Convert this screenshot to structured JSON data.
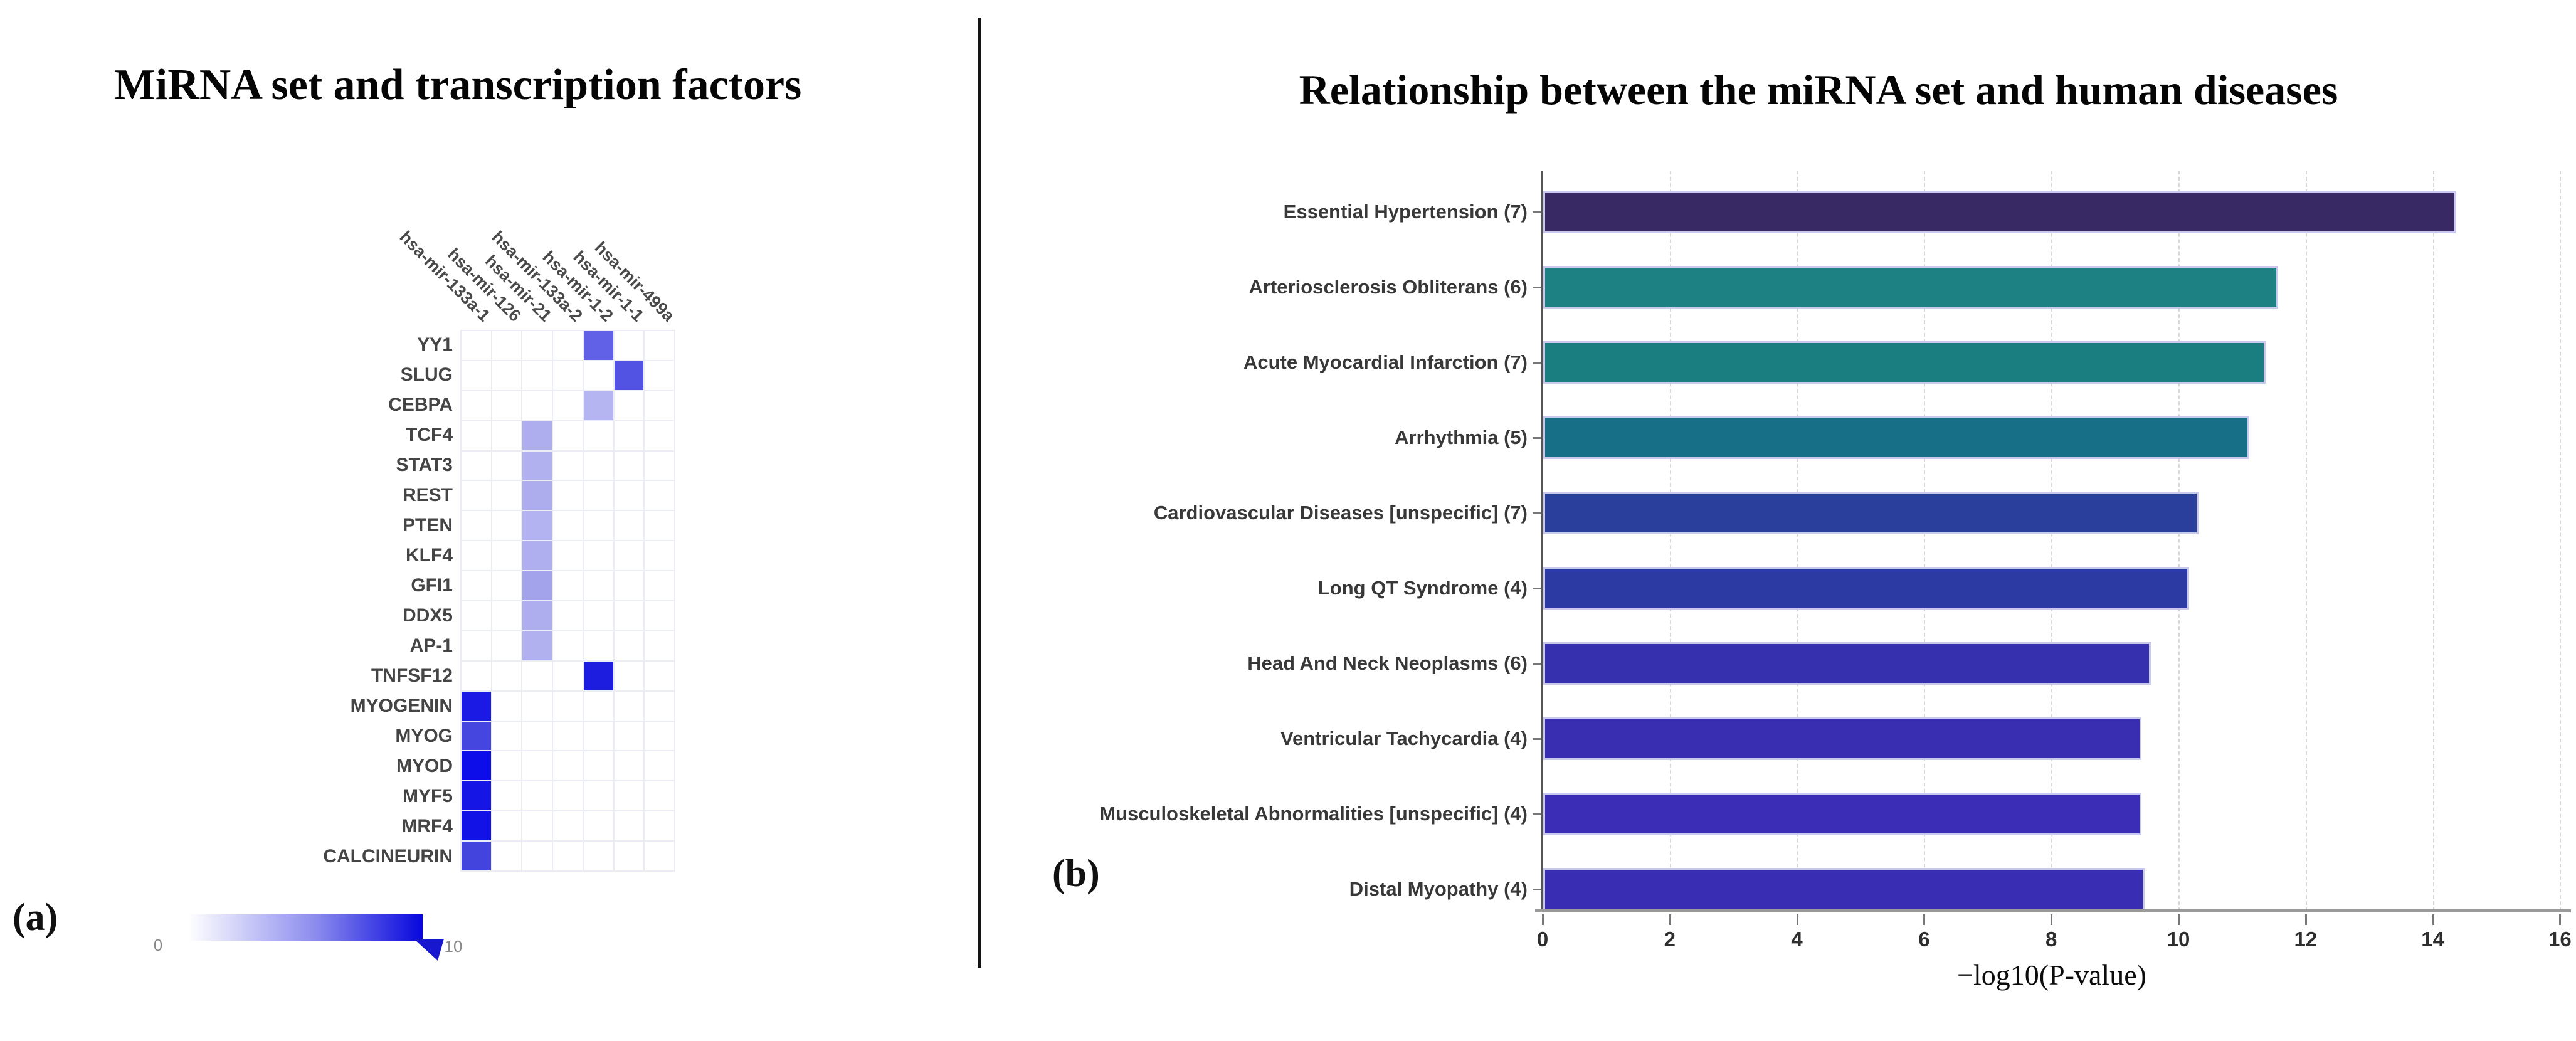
{
  "panel_a": {
    "label": "(a)",
    "title": "MiRNA set and transcription factors",
    "colorbar": {
      "min_label": "0",
      "max_label": "10"
    }
  },
  "panel_b": {
    "label": "(b)",
    "title": "Relationship between the miRNA set and human diseases",
    "xlabel": "−log10(P-value)"
  },
  "chart_data": [
    {
      "type": "heatmap",
      "title": "MiRNA set and transcription factors",
      "columns": [
        "hsa-mir-133a-1",
        "hsa-mir-126",
        "hsa-mir-21",
        "hsa-mir-133a-2",
        "hsa-mir-1-2",
        "hsa-mir-1-1",
        "hsa-mir-499a"
      ],
      "rows": [
        "YY1",
        "SLUG",
        "CEBPA",
        "TCF4",
        "STAT3",
        "REST",
        "PTEN",
        "KLF4",
        "GFI1",
        "DDX5",
        "AP-1",
        "TNFSF12",
        "MYOGENIN",
        "MYOG",
        "MYOD",
        "MYF5",
        "MRF4",
        "CALCINEURIN"
      ],
      "colorbar": {
        "min": 0,
        "max": 10,
        "min_color": "#ffffff",
        "max_color": "#0707dd"
      },
      "grid": true,
      "cells": [
        {
          "row": "YY1",
          "col": "hsa-mir-1-2",
          "value": 6,
          "color": "#6161e8"
        },
        {
          "row": "SLUG",
          "col": "hsa-mir-1-1",
          "value": 6.5,
          "color": "#5252e3"
        },
        {
          "row": "CEBPA",
          "col": "hsa-mir-1-2",
          "value": 3,
          "color": "#b5b5f2"
        },
        {
          "row": "TCF4",
          "col": "hsa-mir-21",
          "value": 3,
          "color": "#aeaeef"
        },
        {
          "row": "STAT3",
          "col": "hsa-mir-21",
          "value": 3,
          "color": "#b1b1f0"
        },
        {
          "row": "REST",
          "col": "hsa-mir-21",
          "value": 3,
          "color": "#adadee"
        },
        {
          "row": "PTEN",
          "col": "hsa-mir-21",
          "value": 3,
          "color": "#b3b3f1"
        },
        {
          "row": "KLF4",
          "col": "hsa-mir-21",
          "value": 3,
          "color": "#afafef"
        },
        {
          "row": "GFI1",
          "col": "hsa-mir-21",
          "value": 3.5,
          "color": "#a3a3ec"
        },
        {
          "row": "DDX5",
          "col": "hsa-mir-21",
          "value": 3,
          "color": "#aeaeee"
        },
        {
          "row": "AP-1",
          "col": "hsa-mir-21",
          "value": 3,
          "color": "#b1b1f0"
        },
        {
          "row": "TNFSF12",
          "col": "hsa-mir-1-2",
          "value": 9,
          "color": "#1d1de0"
        },
        {
          "row": "MYOGENIN",
          "col": "hsa-mir-133a-1",
          "value": 9,
          "color": "#1a1ae4"
        },
        {
          "row": "MYOG",
          "col": "hsa-mir-133a-1",
          "value": 7,
          "color": "#4545df"
        },
        {
          "row": "MYOD",
          "col": "hsa-mir-133a-1",
          "value": 10,
          "color": "#0d0dea"
        },
        {
          "row": "MYF5",
          "col": "hsa-mir-133a-1",
          "value": 9.5,
          "color": "#1515e5"
        },
        {
          "row": "MRF4",
          "col": "hsa-mir-133a-1",
          "value": 9.5,
          "color": "#1212e6"
        },
        {
          "row": "CALCINEURIN",
          "col": "hsa-mir-133a-1",
          "value": 7,
          "color": "#4343dd"
        }
      ]
    },
    {
      "type": "bar",
      "orientation": "horizontal",
      "title": "Relationship between the miRNA set and human diseases",
      "xlabel": "−log10(P-value)",
      "xlim": [
        0,
        16
      ],
      "xticks": [
        0,
        2,
        4,
        6,
        8,
        10,
        12,
        14,
        16
      ],
      "grid": "vertical-dashed",
      "bars": [
        {
          "label": "Essential Hypertension (7)",
          "value": 14.3,
          "color": "#382964"
        },
        {
          "label": "Arteriosclerosis Obliterans (6)",
          "value": 11.5,
          "color": "#1d8184"
        },
        {
          "label": "Acute Myocardial Infarction (7)",
          "value": 11.3,
          "color": "#1a7e81"
        },
        {
          "label": "Arrhythmia (5)",
          "value": 11.05,
          "color": "#166f87"
        },
        {
          "label": "Cardiovascular Diseases [unspecific] (7)",
          "value": 10.25,
          "color": "#2a3f9c"
        },
        {
          "label": "Long QT Syndrome (4)",
          "value": 10.1,
          "color": "#2c3aa4"
        },
        {
          "label": "Head And Neck Neoplasms (6)",
          "value": 9.5,
          "color": "#3730ae"
        },
        {
          "label": "Ventricular Tachycardia (4)",
          "value": 9.35,
          "color": "#392eb2"
        },
        {
          "label": "Musculoskeletal Abnormalities [unspecific] (4)",
          "value": 9.35,
          "color": "#3b2db6"
        },
        {
          "label": "Distal Myopathy (4)",
          "value": 9.4,
          "color": "#392eb3"
        }
      ]
    }
  ]
}
